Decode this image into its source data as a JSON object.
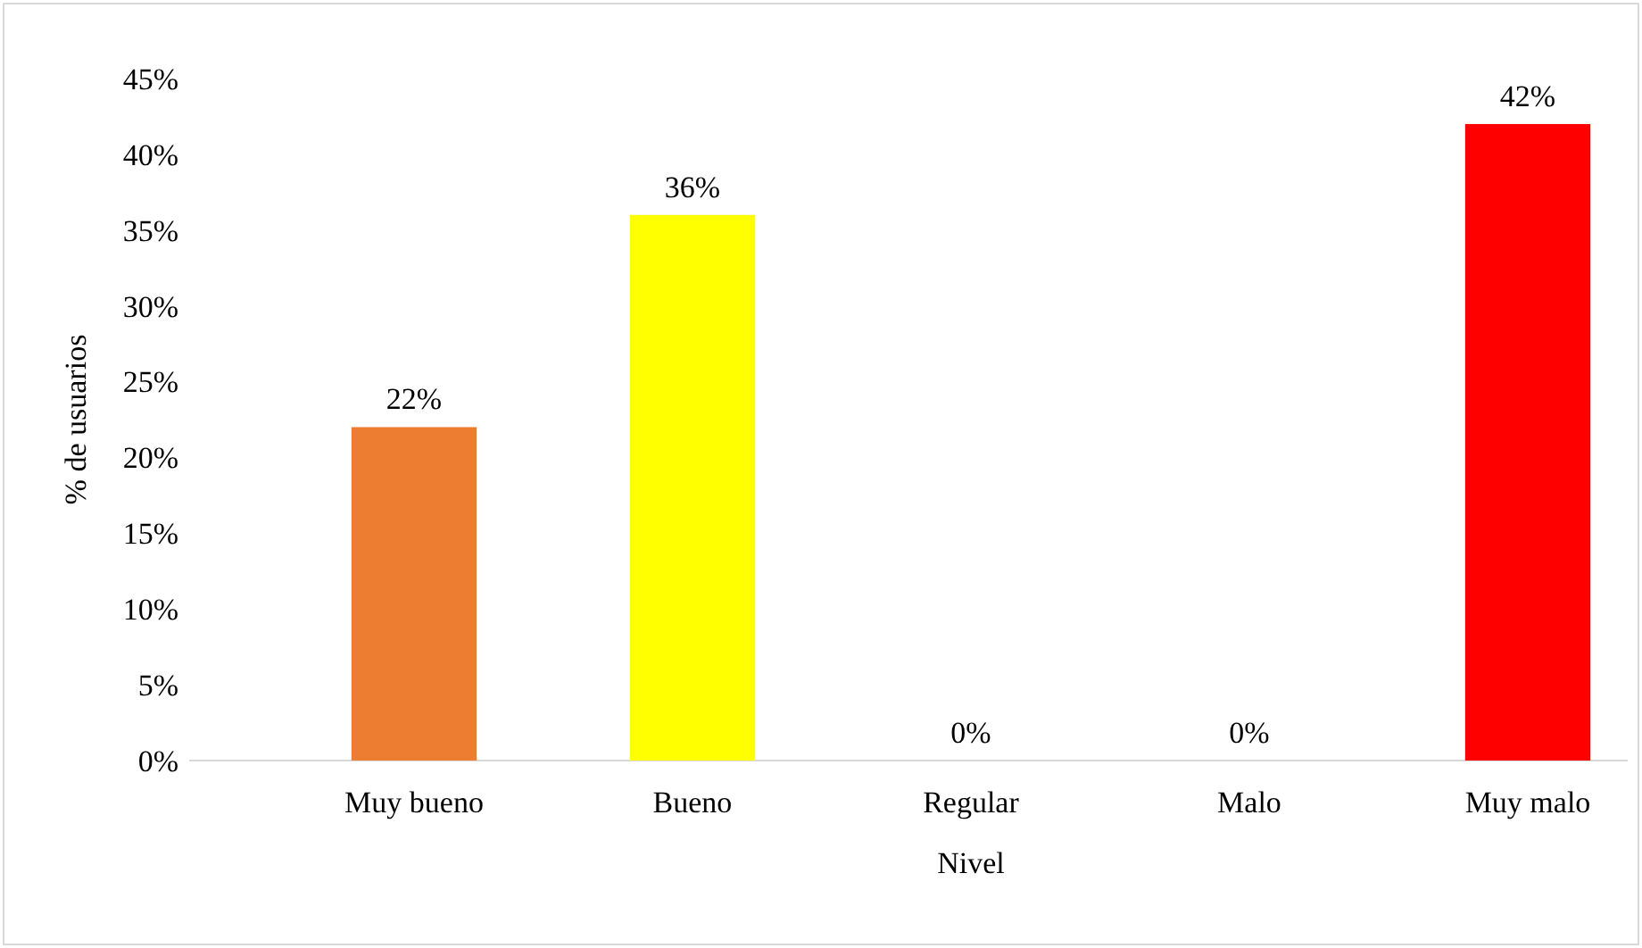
{
  "chart_data": {
    "type": "bar",
    "xlabel": "Nivel",
    "ylabel": "% de usuarios",
    "categories": [
      "Muy bueno",
      "Bueno",
      "Regular",
      "Malo",
      "Muy malo"
    ],
    "values": [
      22,
      36,
      0,
      0,
      42
    ],
    "colors": [
      "#ed7d31",
      "#ffff00",
      "#a5a5a5",
      "#ffc000",
      "#ff0000"
    ],
    "value_labels": [
      "22%",
      "36%",
      "0%",
      "0%",
      "42%"
    ],
    "ylim": [
      0,
      45
    ],
    "yticks": [
      {
        "value": 0,
        "label": "0%"
      },
      {
        "value": 5,
        "label": "5%"
      },
      {
        "value": 10,
        "label": "10%"
      },
      {
        "value": 15,
        "label": "15%"
      },
      {
        "value": 20,
        "label": "20%"
      },
      {
        "value": 25,
        "label": "25%"
      },
      {
        "value": 30,
        "label": "30%"
      },
      {
        "value": 35,
        "label": "35%"
      },
      {
        "value": 40,
        "label": "40%"
      },
      {
        "value": 45,
        "label": "45%"
      }
    ],
    "grid": false
  }
}
